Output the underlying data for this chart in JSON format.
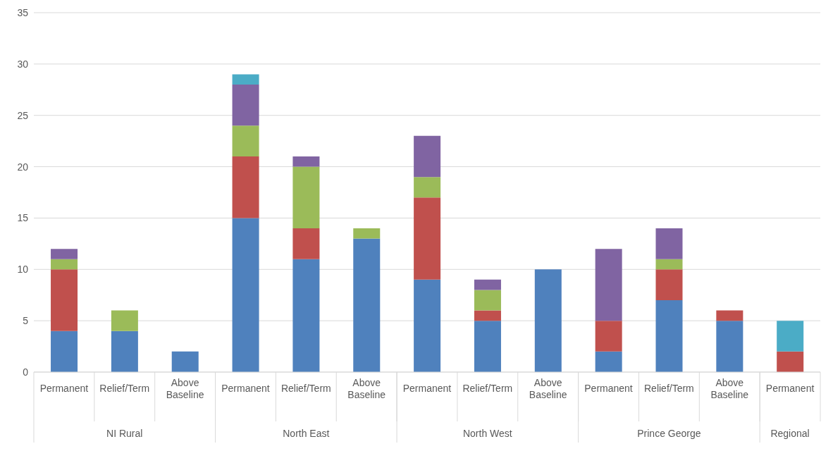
{
  "chart_data": {
    "type": "bar",
    "stacked": true,
    "categories": [
      "Permanent",
      "Relief/Term",
      "Above Baseline",
      "Permanent",
      "Relief/Term",
      "Above Baseline",
      "Permanent",
      "Relief/Term",
      "Above Baseline",
      "Permanent",
      "Relief/Term",
      "Above Baseline",
      "Permanent"
    ],
    "annotations": [
      "NI Rural",
      "North East",
      "North West",
      "Prince George",
      "Regional"
    ],
    "series": [
      {
        "color": "#4f81bd",
        "values": [
          4,
          4,
          2,
          15,
          11,
          13,
          9,
          5,
          10,
          2,
          7,
          5,
          null
        ]
      },
      {
        "color": "#c0504d",
        "values": [
          6,
          null,
          null,
          6,
          3,
          null,
          8,
          1,
          null,
          3,
          3,
          1,
          2
        ]
      },
      {
        "color": "#9bbb59",
        "values": [
          1,
          2,
          null,
          3,
          6,
          1,
          2,
          2,
          null,
          null,
          1,
          null,
          null
        ]
      },
      {
        "color": "#8064a2",
        "values": [
          1,
          null,
          null,
          4,
          1,
          null,
          4,
          1,
          null,
          7,
          3,
          null,
          null
        ]
      },
      {
        "color": "#4bacc6",
        "values": [
          null,
          null,
          null,
          1,
          null,
          null,
          null,
          null,
          null,
          null,
          null,
          null,
          3
        ]
      }
    ],
    "ylim": [
      0,
      35
    ],
    "yticks": [
      0,
      5,
      10,
      15,
      20,
      25,
      30,
      35
    ],
    "grid": "y",
    "legend": false
  }
}
